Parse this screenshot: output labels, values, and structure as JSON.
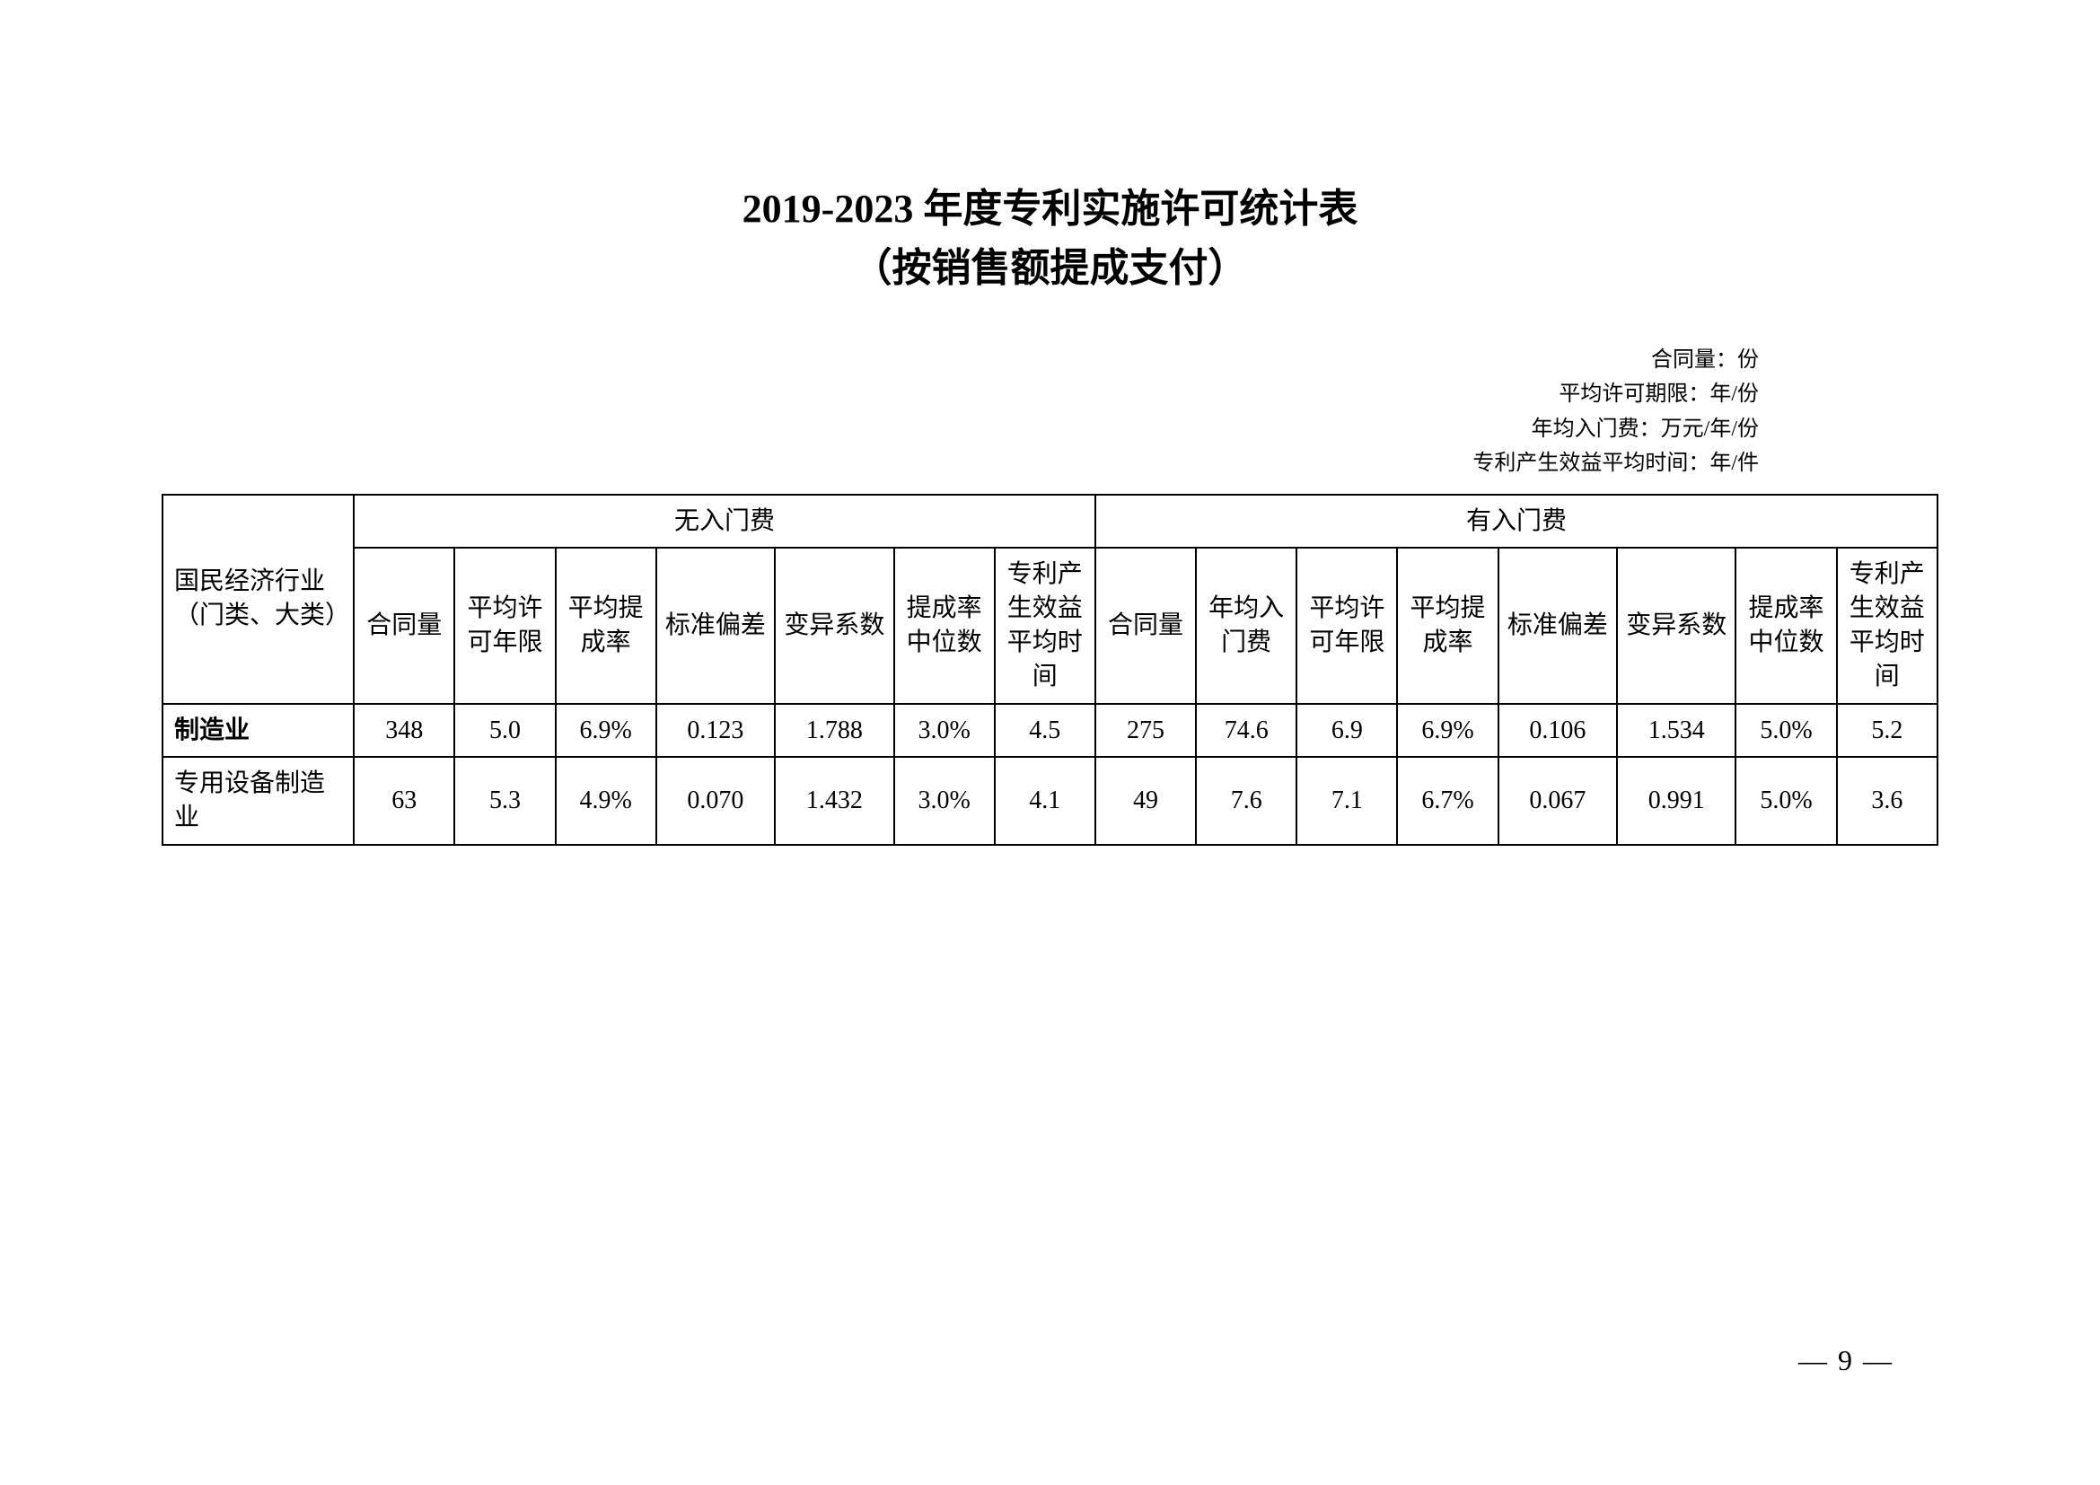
{
  "title": {
    "line1": "2019-2023 年度专利实施许可统计表",
    "line2": "（按销售额提成支付）"
  },
  "legend": {
    "l1": "合同量：份",
    "l2": "平均许可期限：年/份",
    "l3": "年均入门费：万元/年/份",
    "l4": "专利产生效益平均时间：年/件"
  },
  "headers": {
    "category": "国民经济行业（门类、大类）",
    "group_no_fee": "无入门费",
    "group_fee": "有入门费",
    "contract_qty": "合同量",
    "avg_license_years": "平均许可年限",
    "avg_rate": "平均提成率",
    "std_dev": "标准偏差",
    "cv": "变异系数",
    "median_rate": "提成率中位数",
    "avg_benefit_time": "专利产生效益平均时间",
    "annual_entry_fee": "年均入门费"
  },
  "rows": [
    {
      "category": "制造业",
      "bold": true,
      "no_fee": {
        "contract_qty": "348",
        "avg_license_years": "5.0",
        "avg_rate": "6.9%",
        "std_dev": "0.123",
        "cv": "1.788",
        "median_rate": "3.0%",
        "avg_benefit_time": "4.5"
      },
      "fee": {
        "contract_qty": "275",
        "annual_entry_fee": "74.6",
        "avg_license_years": "6.9",
        "avg_rate": "6.9%",
        "std_dev": "0.106",
        "cv": "1.534",
        "median_rate": "5.0%",
        "avg_benefit_time": "5.2"
      }
    },
    {
      "category": "专用设备制造业",
      "bold": false,
      "no_fee": {
        "contract_qty": "63",
        "avg_license_years": "5.3",
        "avg_rate": "4.9%",
        "std_dev": "0.070",
        "cv": "1.432",
        "median_rate": "3.0%",
        "avg_benefit_time": "4.1"
      },
      "fee": {
        "contract_qty": "49",
        "annual_entry_fee": "7.6",
        "avg_license_years": "7.1",
        "avg_rate": "6.7%",
        "std_dev": "0.067",
        "cv": "0.991",
        "median_rate": "5.0%",
        "avg_benefit_time": "3.6"
      }
    }
  ],
  "page_number": "— 9 —"
}
